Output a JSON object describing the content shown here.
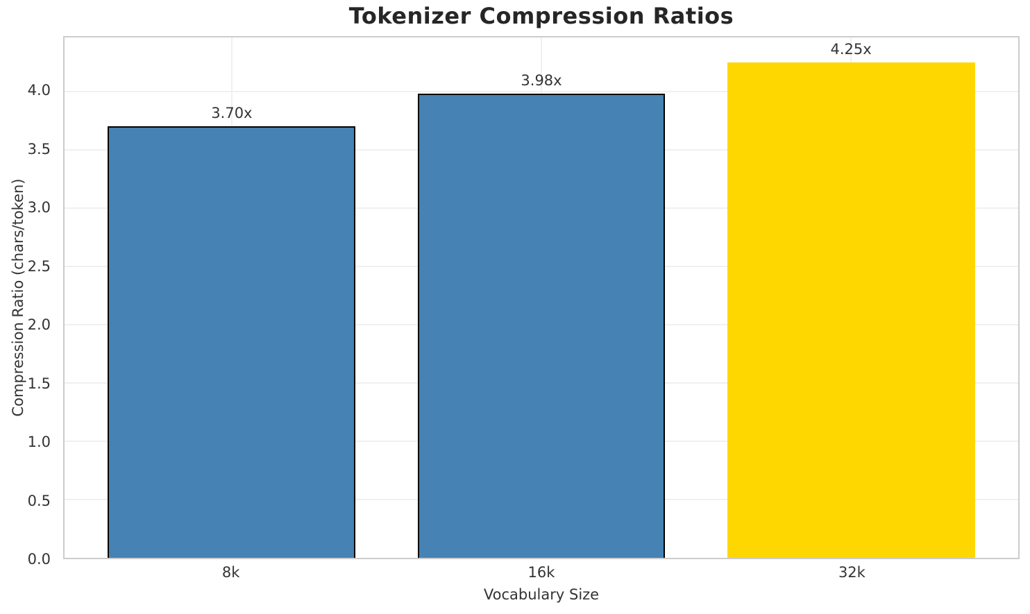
{
  "chart_data": {
    "type": "bar",
    "title": "Tokenizer Compression Ratios",
    "xlabel": "Vocabulary Size",
    "ylabel": "Compression Ratio (chars/token)",
    "categories": [
      "8k",
      "16k",
      "32k"
    ],
    "values": [
      3.7,
      3.98,
      4.25
    ],
    "bar_value_labels": [
      "3.70x",
      "3.98x",
      "4.25x"
    ],
    "yticks": [
      0.0,
      0.5,
      1.0,
      1.5,
      2.0,
      2.5,
      3.0,
      3.5,
      4.0
    ],
    "ytick_labels": [
      "0.0",
      "0.5",
      "1.0",
      "1.5",
      "2.0",
      "2.5",
      "3.0",
      "3.5",
      "4.0"
    ],
    "ylim": [
      0,
      4.4625
    ],
    "grid": true,
    "legend_position": "none",
    "bar_colors": [
      "#4682B4",
      "#4682B4",
      "#FFD700"
    ],
    "bar_edge_colors": [
      "#000000",
      "#000000",
      "#FFD700"
    ]
  },
  "colors": {
    "background": "#ffffff",
    "spine": "#cccccc",
    "gridline": "#f0f0f0",
    "title_text": "#262626",
    "tick_text": "#333333",
    "bar_blue": "#4682B4",
    "bar_highlight_gold": "#FFD700",
    "bar_edge": "#000000"
  }
}
